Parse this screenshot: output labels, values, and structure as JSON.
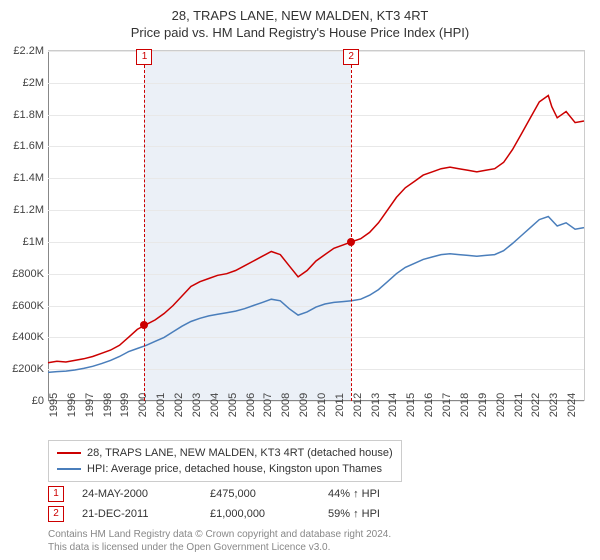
{
  "title": {
    "main": "28, TRAPS LANE, NEW MALDEN, KT3 4RT",
    "sub": "Price paid vs. HM Land Registry's House Price Index (HPI)"
  },
  "chart": {
    "type": "line",
    "background_color": "#ffffff",
    "grid_color": "#e8e8e8",
    "x_min": 1995,
    "x_max": 2025,
    "y_min": 0,
    "y_max": 2200000,
    "y_ticks": [
      0,
      200000,
      400000,
      600000,
      800000,
      1000000,
      1200000,
      1400000,
      1600000,
      1800000,
      2000000,
      2200000
    ],
    "y_tick_labels": [
      "£0",
      "£200K",
      "£400K",
      "£600K",
      "£800K",
      "£1M",
      "£1.2M",
      "£1.4M",
      "£1.6M",
      "£1.8M",
      "£2M",
      "£2.2M"
    ],
    "x_ticks": [
      1995,
      1996,
      1997,
      1998,
      1999,
      2000,
      2001,
      2002,
      2003,
      2004,
      2005,
      2006,
      2007,
      2008,
      2009,
      2010,
      2011,
      2012,
      2013,
      2014,
      2015,
      2016,
      2017,
      2018,
      2019,
      2020,
      2021,
      2022,
      2023,
      2024
    ],
    "series": [
      {
        "name": "property",
        "label": "28, TRAPS LANE, NEW MALDEN, KT3 4RT (detached house)",
        "color": "#cc0000",
        "line_width": 1.5,
        "data": [
          [
            1995,
            240000
          ],
          [
            1995.5,
            250000
          ],
          [
            1996,
            245000
          ],
          [
            1996.5,
            255000
          ],
          [
            1997,
            265000
          ],
          [
            1997.5,
            280000
          ],
          [
            1998,
            300000
          ],
          [
            1998.5,
            320000
          ],
          [
            1999,
            350000
          ],
          [
            1999.5,
            400000
          ],
          [
            2000,
            450000
          ],
          [
            2000.4,
            475000
          ],
          [
            2001,
            510000
          ],
          [
            2001.5,
            550000
          ],
          [
            2002,
            600000
          ],
          [
            2002.5,
            660000
          ],
          [
            2003,
            720000
          ],
          [
            2003.5,
            750000
          ],
          [
            2004,
            770000
          ],
          [
            2004.5,
            790000
          ],
          [
            2005,
            800000
          ],
          [
            2005.5,
            820000
          ],
          [
            2006,
            850000
          ],
          [
            2006.5,
            880000
          ],
          [
            2007,
            910000
          ],
          [
            2007.5,
            940000
          ],
          [
            2008,
            920000
          ],
          [
            2008.5,
            850000
          ],
          [
            2009,
            780000
          ],
          [
            2009.5,
            820000
          ],
          [
            2010,
            880000
          ],
          [
            2010.5,
            920000
          ],
          [
            2011,
            960000
          ],
          [
            2011.5,
            980000
          ],
          [
            2011.97,
            1000000
          ],
          [
            2012.5,
            1020000
          ],
          [
            2013,
            1060000
          ],
          [
            2013.5,
            1120000
          ],
          [
            2014,
            1200000
          ],
          [
            2014.5,
            1280000
          ],
          [
            2015,
            1340000
          ],
          [
            2015.5,
            1380000
          ],
          [
            2016,
            1420000
          ],
          [
            2016.5,
            1440000
          ],
          [
            2017,
            1460000
          ],
          [
            2017.5,
            1470000
          ],
          [
            2018,
            1460000
          ],
          [
            2018.5,
            1450000
          ],
          [
            2019,
            1440000
          ],
          [
            2019.5,
            1450000
          ],
          [
            2020,
            1460000
          ],
          [
            2020.5,
            1500000
          ],
          [
            2021,
            1580000
          ],
          [
            2021.5,
            1680000
          ],
          [
            2022,
            1780000
          ],
          [
            2022.5,
            1880000
          ],
          [
            2023,
            1920000
          ],
          [
            2023.2,
            1850000
          ],
          [
            2023.5,
            1780000
          ],
          [
            2024,
            1820000
          ],
          [
            2024.5,
            1750000
          ],
          [
            2025,
            1760000
          ]
        ]
      },
      {
        "name": "hpi",
        "label": "HPI: Average price, detached house, Kingston upon Thames",
        "color": "#4a7ebb",
        "line_width": 1.5,
        "data": [
          [
            1995,
            180000
          ],
          [
            1995.5,
            185000
          ],
          [
            1996,
            188000
          ],
          [
            1996.5,
            195000
          ],
          [
            1997,
            205000
          ],
          [
            1997.5,
            218000
          ],
          [
            1998,
            235000
          ],
          [
            1998.5,
            255000
          ],
          [
            1999,
            280000
          ],
          [
            1999.5,
            310000
          ],
          [
            2000,
            330000
          ],
          [
            2000.5,
            350000
          ],
          [
            2001,
            375000
          ],
          [
            2001.5,
            400000
          ],
          [
            2002,
            435000
          ],
          [
            2002.5,
            470000
          ],
          [
            2003,
            500000
          ],
          [
            2003.5,
            520000
          ],
          [
            2004,
            535000
          ],
          [
            2004.5,
            545000
          ],
          [
            2005,
            555000
          ],
          [
            2005.5,
            565000
          ],
          [
            2006,
            580000
          ],
          [
            2006.5,
            600000
          ],
          [
            2007,
            620000
          ],
          [
            2007.5,
            640000
          ],
          [
            2008,
            630000
          ],
          [
            2008.5,
            580000
          ],
          [
            2009,
            540000
          ],
          [
            2009.5,
            560000
          ],
          [
            2010,
            590000
          ],
          [
            2010.5,
            610000
          ],
          [
            2011,
            620000
          ],
          [
            2011.5,
            625000
          ],
          [
            2012,
            630000
          ],
          [
            2012.5,
            640000
          ],
          [
            2013,
            665000
          ],
          [
            2013.5,
            700000
          ],
          [
            2014,
            750000
          ],
          [
            2014.5,
            800000
          ],
          [
            2015,
            840000
          ],
          [
            2015.5,
            865000
          ],
          [
            2016,
            890000
          ],
          [
            2016.5,
            905000
          ],
          [
            2017,
            920000
          ],
          [
            2017.5,
            925000
          ],
          [
            2018,
            920000
          ],
          [
            2018.5,
            915000
          ],
          [
            2019,
            910000
          ],
          [
            2019.5,
            915000
          ],
          [
            2020,
            920000
          ],
          [
            2020.5,
            945000
          ],
          [
            2021,
            990000
          ],
          [
            2021.5,
            1040000
          ],
          [
            2022,
            1090000
          ],
          [
            2022.5,
            1140000
          ],
          [
            2023,
            1160000
          ],
          [
            2023.5,
            1100000
          ],
          [
            2024,
            1120000
          ],
          [
            2024.5,
            1080000
          ],
          [
            2025,
            1090000
          ]
        ]
      }
    ],
    "shaded_range": {
      "x_start": 2000.4,
      "x_end": 2011.97
    },
    "sale_markers": [
      {
        "id": "1",
        "year": 2000.4,
        "price": 475000
      },
      {
        "id": "2",
        "year": 2011.97,
        "price": 1000000
      }
    ]
  },
  "legend": {
    "items": [
      {
        "color": "#cc0000",
        "label": "28, TRAPS LANE, NEW MALDEN, KT3 4RT (detached house)"
      },
      {
        "color": "#4a7ebb",
        "label": "HPI: Average price, detached house, Kingston upon Thames"
      }
    ]
  },
  "sales": [
    {
      "id": "1",
      "date": "24-MAY-2000",
      "price": "£475,000",
      "pct": "44% ↑ HPI"
    },
    {
      "id": "2",
      "date": "21-DEC-2011",
      "price": "£1,000,000",
      "pct": "59% ↑ HPI"
    }
  ],
  "footer": {
    "line1": "Contains HM Land Registry data © Crown copyright and database right 2024.",
    "line2": "This data is licensed under the Open Government Licence v3.0."
  }
}
